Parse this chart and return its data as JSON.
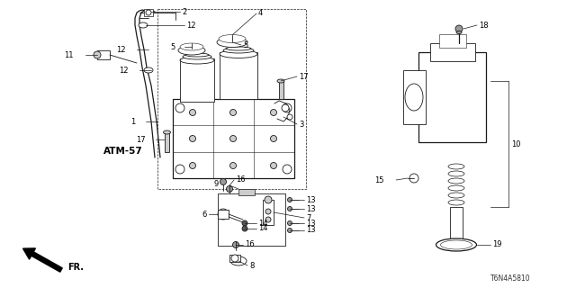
{
  "background_color": "#ffffff",
  "part_number": "T6N4A5810",
  "atm_label": "ATM-57",
  "fr_label": "FR.",
  "line_color": "#1a1a1a",
  "gray_light": "#cccccc",
  "gray_mid": "#999999",
  "gray_dark": "#555555"
}
